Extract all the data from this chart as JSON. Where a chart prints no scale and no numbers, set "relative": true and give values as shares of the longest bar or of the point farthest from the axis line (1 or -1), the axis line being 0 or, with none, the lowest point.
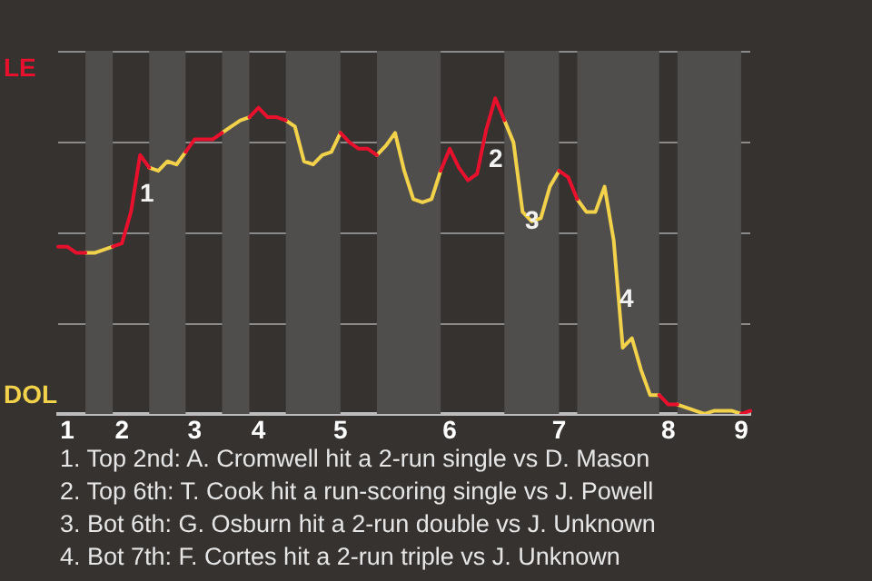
{
  "chart_data": {
    "type": "line",
    "relative": true,
    "legend": "left",
    "grid": "y",
    "categories": [
      null,
      "1",
      null,
      null,
      null,
      null,
      null,
      "2",
      null,
      null,
      null,
      null,
      null,
      null,
      null,
      "3",
      null,
      null,
      null,
      null,
      null,
      null,
      "4",
      null,
      null,
      null,
      null,
      null,
      null,
      null,
      null,
      "5",
      null,
      null,
      null,
      null,
      null,
      null,
      null,
      null,
      null,
      null,
      null,
      "6",
      null,
      null,
      null,
      null,
      null,
      null,
      null,
      null,
      null,
      null,
      null,
      "7",
      null,
      null,
      null,
      null,
      null,
      null,
      null,
      null,
      null,
      null,
      null,
      "8",
      null,
      null,
      null,
      null,
      null,
      null,
      null,
      "9",
      null
    ],
    "series": [
      {
        "name": "LE",
        "color": "#e8112d",
        "values": [
          0.53,
          0.53,
          0.51,
          0.51,
          null,
          null,
          0.53,
          0.54,
          0.64,
          0.82,
          0.78,
          null,
          null,
          null,
          0.83,
          0.87,
          0.87,
          0.87,
          0.89,
          null,
          null,
          0.94,
          0.97,
          0.94,
          0.94,
          0.93,
          null,
          null,
          null,
          null,
          null,
          0.89,
          0.86,
          0.84,
          0.84,
          0.82,
          null,
          null,
          null,
          null,
          null,
          null,
          0.77,
          0.84,
          0.78,
          0.74,
          0.76,
          0.9,
          1,
          0.93,
          null,
          null,
          null,
          null,
          null,
          0.77,
          0.75,
          0.68,
          null,
          null,
          null,
          null,
          null,
          null,
          null,
          null,
          0.06,
          0.03,
          0.03,
          null,
          null,
          null,
          null,
          null,
          null,
          0,
          0.01
        ]
      },
      {
        "name": "DOL",
        "color": "#f2d14b",
        "values": [
          null,
          null,
          null,
          0.51,
          0.51,
          0.52,
          0.53,
          null,
          null,
          null,
          0.78,
          0.77,
          0.8,
          0.79,
          0.83,
          null,
          null,
          null,
          0.89,
          0.91,
          0.93,
          0.94,
          null,
          null,
          null,
          0.93,
          0.91,
          0.8,
          0.79,
          0.82,
          0.83,
          0.89,
          null,
          null,
          null,
          0.82,
          0.85,
          0.89,
          0.77,
          0.68,
          0.67,
          0.68,
          0.77,
          null,
          null,
          null,
          null,
          null,
          null,
          0.93,
          0.86,
          0.64,
          0.61,
          0.62,
          0.72,
          0.77,
          null,
          0.68,
          0.64,
          0.64,
          0.72,
          0.55,
          0.21,
          0.24,
          0.14,
          0.06,
          0.06,
          null,
          0.03,
          0.02,
          0.01,
          0,
          0.01,
          0.01,
          0.01,
          0,
          null
        ]
      }
    ],
    "annotations": [
      "1",
      "2",
      "3",
      "4",
      "1. Top 2nd: A. Cromwell hit a 2-run single vs D. Mason",
      "2. Top 6th: T. Cook hit a run-scoring single vs J. Powell",
      "3. Bot 6th: G. Osburn hit a 2-run double vs J. Unknown",
      "4. Bot 7th: F. Cortes hit a 2-run triple vs J. Unknown"
    ]
  }
}
